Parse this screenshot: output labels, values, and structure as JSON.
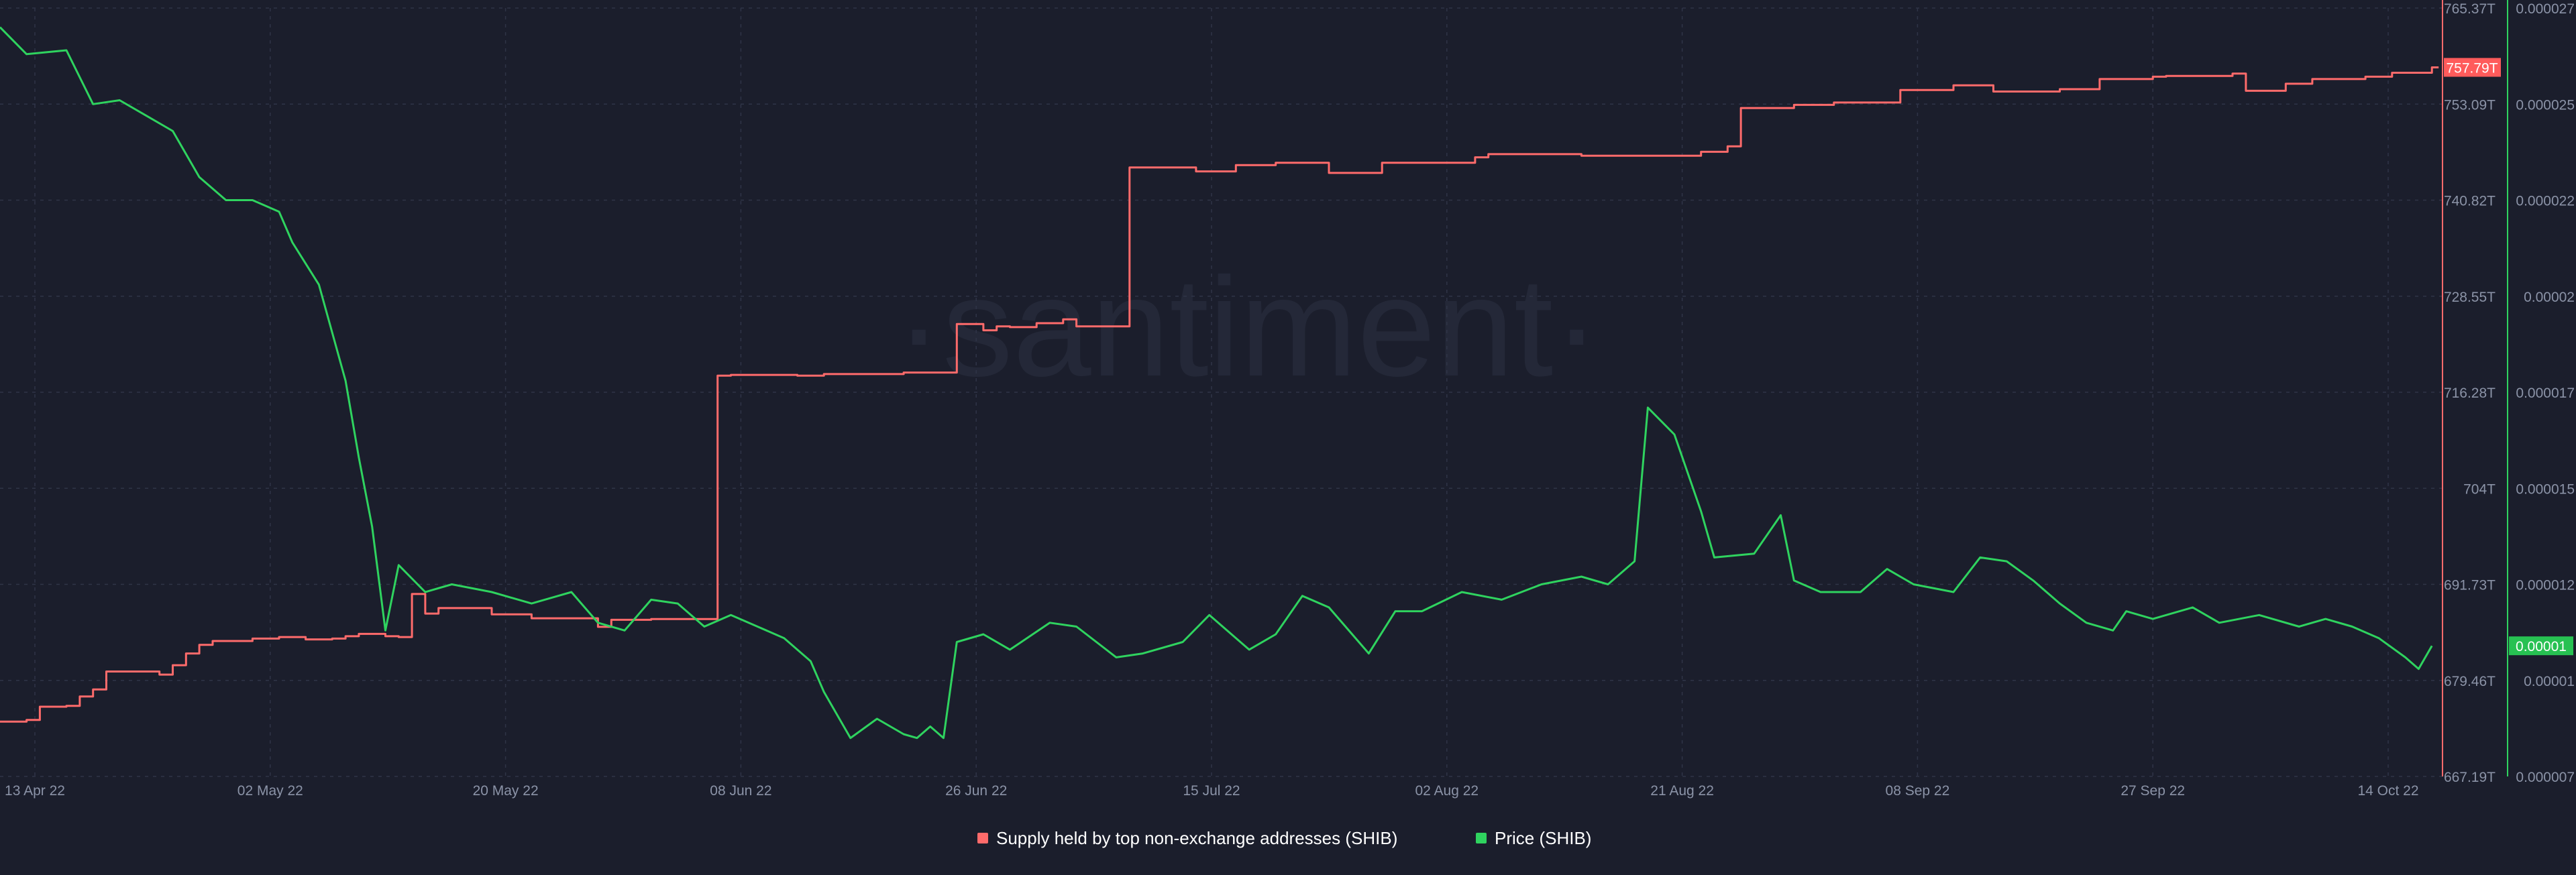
{
  "watermark": "·santiment·",
  "colors": {
    "background": "#1b1e2c",
    "grid": "#2f3447",
    "axis_text": "#8b93a7",
    "supply": "#ff6b6b",
    "price": "#2fd35f",
    "supply_badge": "#ff5b5b",
    "price_badge": "#27c152"
  },
  "chart_data": {
    "type": "line",
    "grid": true,
    "legend_position": "bottom-center",
    "x_ticks": [
      "13 Apr 22",
      "02 May 22",
      "20 May 22",
      "08 Jun 22",
      "26 Jun 22",
      "15 Jul 22",
      "02 Aug 22",
      "21 Aug 22",
      "08 Sep 22",
      "27 Sep 22",
      "14 Oct 22"
    ],
    "y_ticks_supply": [
      "765.37T",
      "753.09T",
      "740.82T",
      "728.55T",
      "716.28T",
      "704T",
      "691.73T",
      "679.46T",
      "667.19T"
    ],
    "y_ticks_price": [
      "0.000027",
      "0.000025",
      "0.000022",
      "0.00002",
      "0.000017",
      "0.000015",
      "0.000012",
      "0.00001",
      "0.000007"
    ],
    "ylim_supply": [
      667.19,
      765.37
    ],
    "ylim_price": [
      7e-06,
      2.7e-05
    ],
    "current_labels": {
      "supply": "757.79T",
      "price": "0.00001"
    },
    "series": [
      {
        "name": "Supply held by top non-exchange addresses (SHIB)",
        "axis": "supply",
        "unit": "T",
        "x": [
          "2022-04-13",
          "2022-04-15",
          "2022-04-16",
          "2022-04-18",
          "2022-04-19",
          "2022-04-20",
          "2022-04-21",
          "2022-04-25",
          "2022-04-26",
          "2022-04-27",
          "2022-04-28",
          "2022-04-29",
          "2022-05-02",
          "2022-05-04",
          "2022-05-06",
          "2022-05-08",
          "2022-05-09",
          "2022-05-10",
          "2022-05-12",
          "2022-05-13",
          "2022-05-14",
          "2022-05-15",
          "2022-05-16",
          "2022-05-20",
          "2022-05-23",
          "2022-05-27",
          "2022-05-28",
          "2022-05-29",
          "2022-06-01",
          "2022-06-06",
          "2022-06-07",
          "2022-06-12",
          "2022-06-14",
          "2022-06-20",
          "2022-06-24",
          "2022-06-26",
          "2022-06-27",
          "2022-06-28",
          "2022-06-30",
          "2022-07-02",
          "2022-07-03",
          "2022-07-07",
          "2022-07-12",
          "2022-07-15",
          "2022-07-18",
          "2022-07-22",
          "2022-07-26",
          "2022-08-02",
          "2022-08-03",
          "2022-08-10",
          "2022-08-15",
          "2022-08-19",
          "2022-08-21",
          "2022-08-22",
          "2022-08-26",
          "2022-08-29",
          "2022-09-03",
          "2022-09-07",
          "2022-09-10",
          "2022-09-15",
          "2022-09-18",
          "2022-09-22",
          "2022-09-23",
          "2022-09-28",
          "2022-09-29",
          "2022-10-02",
          "2022-10-04",
          "2022-10-08",
          "2022-10-10",
          "2022-10-13"
        ],
        "values": [
          674.2,
          674.4,
          676.1,
          676.2,
          677.4,
          678.3,
          680.6,
          680.2,
          681.4,
          682.9,
          684.0,
          684.5,
          684.8,
          685.0,
          684.7,
          684.8,
          685.1,
          685.4,
          685.1,
          685.0,
          690.5,
          688.0,
          688.7,
          687.9,
          687.4,
          687.4,
          686.3,
          687.2,
          687.3,
          718.4,
          718.5,
          718.4,
          718.6,
          718.8,
          725.0,
          724.2,
          724.7,
          724.6,
          725.1,
          725.6,
          724.7,
          745.0,
          744.5,
          745.3,
          745.6,
          744.3,
          745.6,
          746.3,
          746.7,
          746.5,
          746.5,
          747.0,
          747.7,
          752.6,
          753.0,
          753.3,
          754.9,
          755.5,
          754.7,
          755.0,
          756.3,
          756.6,
          756.7,
          757.0,
          754.8,
          755.7,
          756.3,
          756.6,
          757.1,
          757.79
        ]
      },
      {
        "name": "Price (SHIB)",
        "axis": "price",
        "x": [
          "2022-04-13",
          "2022-04-15",
          "2022-04-18",
          "2022-04-20",
          "2022-04-22",
          "2022-04-24",
          "2022-04-26",
          "2022-04-28",
          "2022-04-30",
          "2022-05-02",
          "2022-05-04",
          "2022-05-05",
          "2022-05-07",
          "2022-05-09",
          "2022-05-10",
          "2022-05-11",
          "2022-05-12",
          "2022-05-13",
          "2022-05-15",
          "2022-05-17",
          "2022-05-20",
          "2022-05-23",
          "2022-05-26",
          "2022-05-28",
          "2022-05-30",
          "2022-06-01",
          "2022-06-03",
          "2022-06-05",
          "2022-06-07",
          "2022-06-09",
          "2022-06-11",
          "2022-06-13",
          "2022-06-14",
          "2022-06-16",
          "2022-06-18",
          "2022-06-20",
          "2022-06-21",
          "2022-06-22",
          "2022-06-23",
          "2022-06-24",
          "2022-06-26",
          "2022-06-28",
          "2022-07-01",
          "2022-07-03",
          "2022-07-06",
          "2022-07-08",
          "2022-07-11",
          "2022-07-13",
          "2022-07-16",
          "2022-07-18",
          "2022-07-20",
          "2022-07-22",
          "2022-07-25",
          "2022-07-27",
          "2022-07-29",
          "2022-08-01",
          "2022-08-04",
          "2022-08-07",
          "2022-08-10",
          "2022-08-12",
          "2022-08-14",
          "2022-08-15",
          "2022-08-17",
          "2022-08-19",
          "2022-08-20",
          "2022-08-23",
          "2022-08-25",
          "2022-08-26",
          "2022-08-28",
          "2022-08-31",
          "2022-09-02",
          "2022-09-04",
          "2022-09-07",
          "2022-09-09",
          "2022-09-11",
          "2022-09-13",
          "2022-09-15",
          "2022-09-17",
          "2022-09-19",
          "2022-09-20",
          "2022-09-22",
          "2022-09-25",
          "2022-09-27",
          "2022-09-30",
          "2022-10-03",
          "2022-10-05",
          "2022-10-07",
          "2022-10-09",
          "2022-10-11",
          "2022-10-12",
          "2022-10-13"
        ],
        "values": [
          2.65e-05,
          2.58e-05,
          2.59e-05,
          2.45e-05,
          2.46e-05,
          2.42e-05,
          2.38e-05,
          2.26e-05,
          2.2e-05,
          2.2e-05,
          2.17e-05,
          2.09e-05,
          1.98e-05,
          1.73e-05,
          1.53e-05,
          1.35e-05,
          1.08e-05,
          1.25e-05,
          1.18e-05,
          1.2e-05,
          1.18e-05,
          1.15e-05,
          1.18e-05,
          1.1e-05,
          1.08e-05,
          1.16e-05,
          1.15e-05,
          1.09e-05,
          1.12e-05,
          1.09e-05,
          1.06e-05,
          1e-05,
          9.2e-06,
          8e-06,
          8.5e-06,
          8.1e-06,
          8e-06,
          8.3e-06,
          8e-06,
          1.05e-05,
          1.07e-05,
          1.03e-05,
          1.1e-05,
          1.09e-05,
          1.01e-05,
          1.02e-05,
          1.05e-05,
          1.12e-05,
          1.03e-05,
          1.07e-05,
          1.17e-05,
          1.14e-05,
          1.02e-05,
          1.13e-05,
          1.13e-05,
          1.18e-05,
          1.16e-05,
          1.2e-05,
          1.22e-05,
          1.2e-05,
          1.26e-05,
          1.66e-05,
          1.59e-05,
          1.39e-05,
          1.27e-05,
          1.28e-05,
          1.38e-05,
          1.21e-05,
          1.18e-05,
          1.18e-05,
          1.24e-05,
          1.2e-05,
          1.18e-05,
          1.27e-05,
          1.26e-05,
          1.21e-05,
          1.15e-05,
          1.1e-05,
          1.08e-05,
          1.13e-05,
          1.11e-05,
          1.14e-05,
          1.1e-05,
          1.12e-05,
          1.09e-05,
          1.11e-05,
          1.09e-05,
          1.06e-05,
          1.01e-05,
          9.8e-06,
          1.04e-05
        ]
      }
    ]
  }
}
